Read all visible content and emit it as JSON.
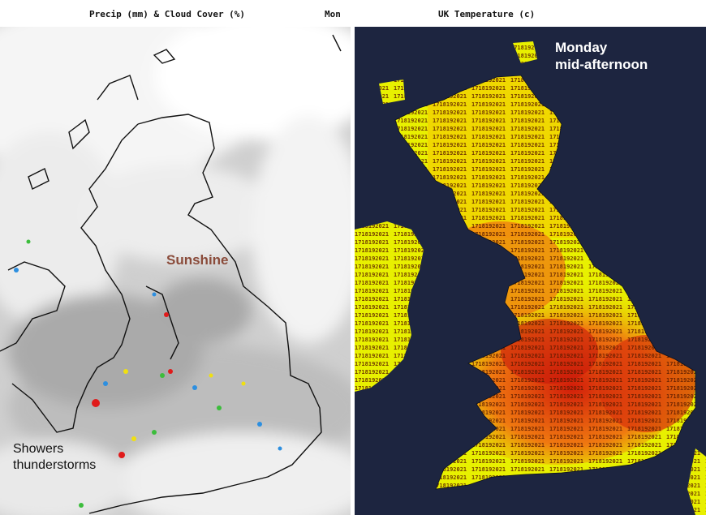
{
  "left_panel": {
    "title": "Precip (mm) & Cloud Cover (%)",
    "date_text": "Mon",
    "annotations": {
      "sunshine": "Sunshine",
      "showers": "Showers",
      "thunderstorms": "thunderstorms"
    }
  },
  "right_panel": {
    "title": "UK Temperature (c)",
    "overlay_line1": "Monday",
    "overlay_line2": "mid-afternoon"
  },
  "colors": {
    "sea_dark": "#1d2540",
    "cool_temp": "#e8f000",
    "warm_temp": "#f07a10",
    "hot_temp": "#d21d0a",
    "cloud": "#ffffff",
    "clear_sky": "#c8c8c8"
  }
}
